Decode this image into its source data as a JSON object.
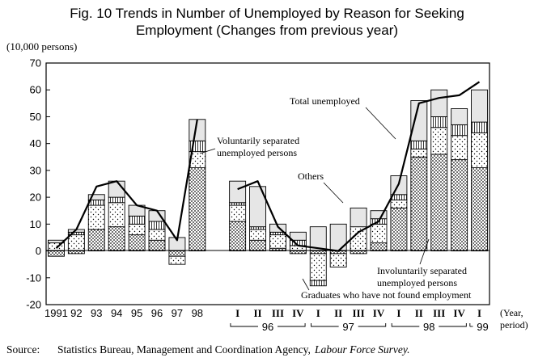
{
  "chart_data": {
    "type": "bar",
    "title_line1": "Fig. 10  Trends in Number of Unemployed by Reason for Seeking",
    "title_line2": "Employment (Changes from previous year)",
    "ylabel": "(10,000 persons)",
    "xlabel_line1": "(Year,",
    "xlabel_line2": "period)",
    "ylim": [
      -20,
      70
    ],
    "yticks": [
      -20,
      -10,
      0,
      10,
      20,
      30,
      40,
      50,
      60,
      70
    ],
    "categories": [
      "1991",
      "92",
      "93",
      "94",
      "95",
      "96",
      "97",
      "98",
      "",
      "I",
      "II",
      "III",
      "IV",
      "I",
      "II",
      "III",
      "IV",
      "I",
      "II",
      "III",
      "IV",
      "I"
    ],
    "year_groups": [
      {
        "label": "96",
        "from": 9,
        "to": 12
      },
      {
        "label": "97",
        "from": 13,
        "to": 16
      },
      {
        "label": "98",
        "from": 17,
        "to": 20
      },
      {
        "label": "99",
        "from": 21,
        "to": 21
      }
    ],
    "series": [
      {
        "name": "Involuntarily separated unemployed persons",
        "pattern": "dots",
        "values": [
          -2,
          -1,
          8,
          9,
          6,
          4,
          -2,
          31,
          null,
          11,
          4,
          1,
          -1,
          -1,
          -1,
          -1,
          3,
          16,
          35,
          36,
          34,
          31
        ]
      },
      {
        "name": "Voluntarily separated unemployed persons",
        "pattern": "wide",
        "values": [
          3,
          6,
          9,
          9,
          4,
          4,
          -3,
          6,
          null,
          6,
          4,
          5,
          2,
          -10,
          -5,
          9,
          7,
          3,
          3,
          10,
          9,
          13
        ]
      },
      {
        "name": "Graduates who have not found employment",
        "pattern": "vline",
        "values": [
          0,
          1,
          2,
          2,
          3,
          3,
          0,
          4,
          null,
          1,
          1,
          1,
          2,
          -2,
          0,
          0,
          2,
          2,
          3,
          4,
          4,
          4
        ]
      },
      {
        "name": "Others",
        "pattern": "light",
        "values": [
          1,
          1,
          2,
          6,
          4,
          4,
          5,
          8,
          null,
          8,
          15,
          3,
          3,
          9,
          10,
          7,
          3,
          7,
          15,
          10,
          6,
          12
        ]
      }
    ],
    "total_line": {
      "name": "Total unemployed",
      "values": [
        1,
        8,
        24,
        26,
        17,
        15,
        4,
        49,
        null,
        23,
        26,
        9,
        2,
        1,
        0,
        7,
        11,
        25,
        55,
        57,
        58,
        63
      ]
    },
    "annotations": {
      "total": "Total unemployed",
      "voluntary_line1": "Voluntarily separated",
      "voluntary_line2": "unemployed persons",
      "others": "Others",
      "involuntary_line1": "Involuntarily separated",
      "involuntary_line2": "unemployed persons",
      "graduates": "Graduates who have not found employment"
    },
    "source_label": "Source:",
    "source_text": "Statistics Bureau, Management and Coordination Agency,",
    "source_italic": "Labour Force Survey."
  }
}
